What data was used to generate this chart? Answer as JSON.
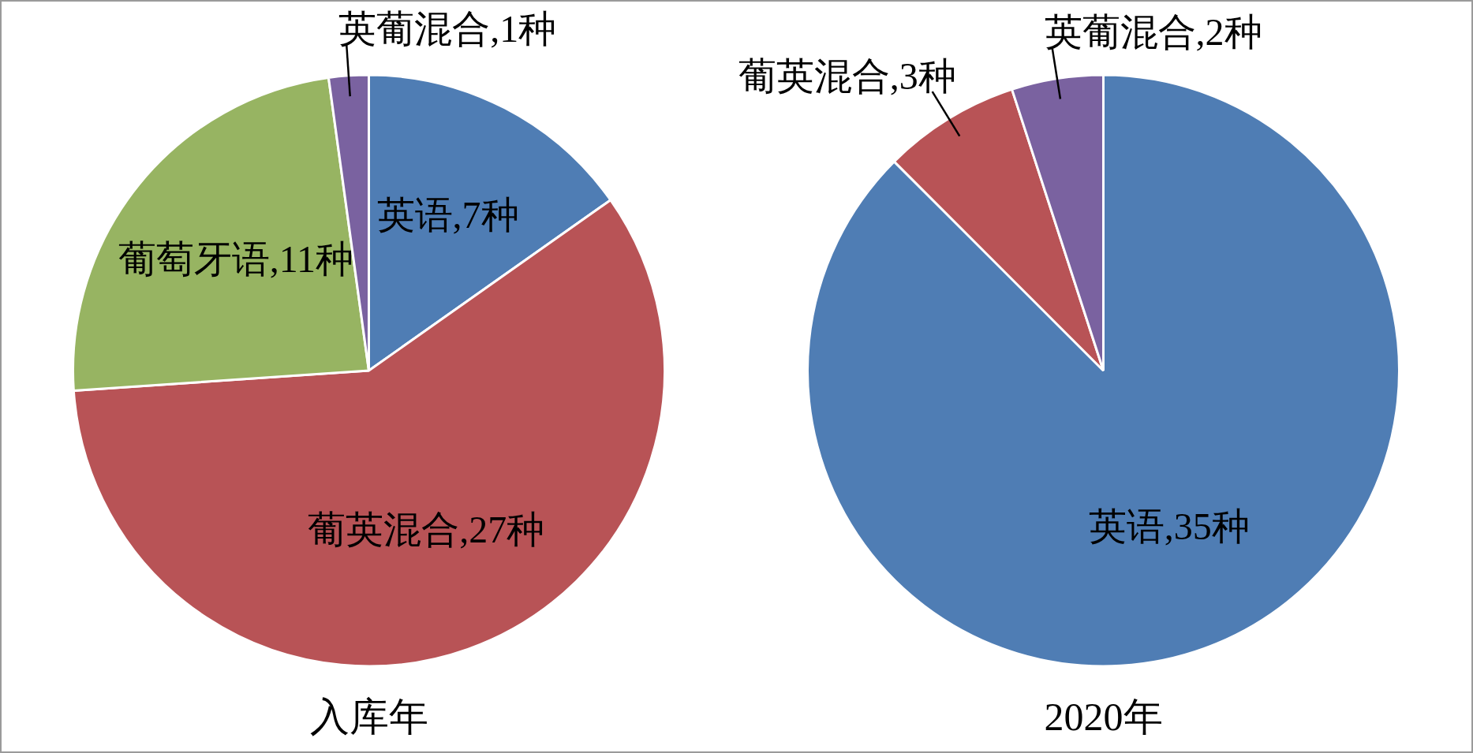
{
  "chart_data": [
    {
      "type": "pie",
      "title": "入库年",
      "categories": [
        "英语",
        "葡英混合",
        "葡萄牙语",
        "英葡混合"
      ],
      "values": [
        7,
        27,
        11,
        1
      ],
      "colors": [
        "#4f7db4",
        "#b85356",
        "#97b462",
        "#7a62a0"
      ],
      "value_labels": [
        ",7种",
        ",27种",
        ",11种",
        ",1种"
      ]
    },
    {
      "type": "pie",
      "title": "2020年",
      "categories": [
        "英语",
        "葡英混合",
        "英葡混合"
      ],
      "values": [
        35,
        3,
        2
      ],
      "colors": [
        "#4f7db4",
        "#b85356",
        "#7a62a0"
      ],
      "value_labels": [
        ",35种",
        ",3种",
        ",2种"
      ]
    }
  ]
}
